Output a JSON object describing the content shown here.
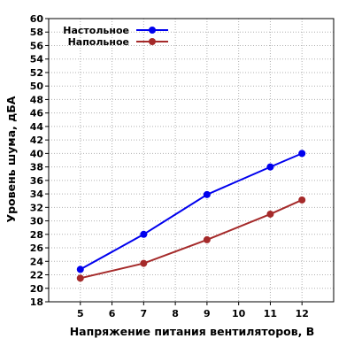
{
  "chart_data": {
    "type": "line",
    "xlabel": "Напряжение питания вентиляторов, В",
    "ylabel": "Уровень шума, дБА",
    "xlim": [
      4,
      13
    ],
    "ylim": [
      18,
      60
    ],
    "x_ticks": [
      "5",
      "6",
      "7",
      "8",
      "9",
      "10",
      "11",
      "12"
    ],
    "y_ticks": [
      "18",
      "20",
      "22",
      "24",
      "26",
      "28",
      "30",
      "32",
      "34",
      "36",
      "38",
      "40",
      "42",
      "44",
      "46",
      "48",
      "50",
      "52",
      "54",
      "56",
      "58",
      "60"
    ],
    "grid": true,
    "legend_position": "top-left",
    "series": [
      {
        "name": "Настольное",
        "color": "#0000ee",
        "x": [
          5,
          7,
          9,
          11,
          12
        ],
        "y": [
          22.8,
          28.0,
          33.9,
          38.0,
          40.0
        ]
      },
      {
        "name": "Напольное",
        "color": "#a52a2a",
        "x": [
          5,
          7,
          9,
          11,
          12
        ],
        "y": [
          21.5,
          23.7,
          27.2,
          31.0,
          33.1
        ]
      }
    ]
  }
}
